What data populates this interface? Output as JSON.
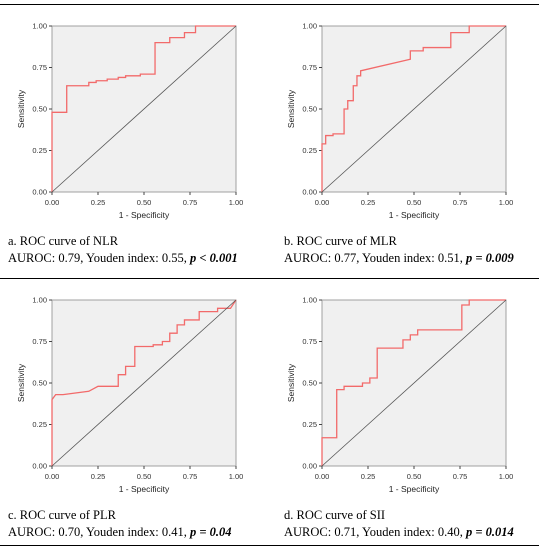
{
  "chart_data": [
    {
      "type": "line",
      "xlabel": "1 - Specificity",
      "ylabel": "Sensitivity",
      "xlim": [
        0,
        1
      ],
      "ylim": [
        0,
        1
      ],
      "xticks": [
        "0.00",
        "0.25",
        "0.50",
        "0.75",
        "1.00"
      ],
      "yticks": [
        "0.00",
        "0.25",
        "0.50",
        "0.75",
        "1.00"
      ],
      "caption_title": "a. ROC curve of NLR",
      "caption_stats": "AUROC: 0.79, Youden index: 0.55,",
      "caption_p": "p < 0.001",
      "series": [
        {
          "x": [
            0,
            0,
            0.02,
            0.02,
            0.08,
            0.08,
            0.2,
            0.2,
            0.24,
            0.24,
            0.3,
            0.3,
            0.36,
            0.36,
            0.4,
            0.4,
            0.48,
            0.48,
            0.56,
            0.56,
            0.64,
            0.64,
            0.72,
            0.72,
            0.78,
            0.78,
            1.0
          ],
          "y": [
            0,
            0.48,
            0.48,
            0.48,
            0.48,
            0.64,
            0.64,
            0.66,
            0.66,
            0.67,
            0.67,
            0.68,
            0.68,
            0.69,
            0.69,
            0.7,
            0.7,
            0.71,
            0.71,
            0.9,
            0.9,
            0.93,
            0.93,
            0.96,
            0.96,
            1.0,
            1.0
          ]
        },
        {
          "x": [
            0,
            1
          ],
          "y": [
            0,
            1
          ]
        }
      ]
    },
    {
      "type": "line",
      "xlabel": "1 - Specificity",
      "ylabel": "Sensitivity",
      "xlim": [
        0,
        1
      ],
      "ylim": [
        0,
        1
      ],
      "xticks": [
        "0.00",
        "0.25",
        "0.50",
        "0.75",
        "1.00"
      ],
      "yticks": [
        "0.00",
        "0.25",
        "0.50",
        "0.75",
        "1.00"
      ],
      "caption_title": "b. ROC curve of MLR",
      "caption_stats": "AUROC: 0.77, Youden index: 0.51,",
      "caption_p": "p = 0.009",
      "series": [
        {
          "x": [
            0,
            0,
            0.02,
            0.02,
            0.06,
            0.06,
            0.12,
            0.12,
            0.14,
            0.14,
            0.17,
            0.17,
            0.19,
            0.19,
            0.21,
            0.21,
            0.48,
            0.48,
            0.55,
            0.55,
            0.7,
            0.7,
            0.8,
            0.8,
            1.0
          ],
          "y": [
            0,
            0.29,
            0.29,
            0.34,
            0.34,
            0.35,
            0.35,
            0.5,
            0.5,
            0.55,
            0.55,
            0.64,
            0.64,
            0.7,
            0.7,
            0.73,
            0.8,
            0.85,
            0.85,
            0.87,
            0.87,
            0.96,
            0.96,
            1.0,
            1.0
          ]
        },
        {
          "x": [
            0,
            1
          ],
          "y": [
            0,
            1
          ]
        }
      ]
    },
    {
      "type": "line",
      "xlabel": "1 - Specificity",
      "ylabel": "Sensitivity",
      "xlim": [
        0,
        1
      ],
      "ylim": [
        0,
        1
      ],
      "xticks": [
        "0.00",
        "0.25",
        "0.50",
        "0.75",
        "1.00"
      ],
      "yticks": [
        "0.00",
        "0.25",
        "0.50",
        "0.75",
        "1.00"
      ],
      "caption_title": "c. ROC curve of PLR",
      "caption_stats": "AUROC: 0.70, Youden index: 0.41,",
      "caption_p": "p = 0.04",
      "series": [
        {
          "x": [
            0,
            0,
            0.02,
            0.06,
            0.2,
            0.25,
            0.36,
            0.36,
            0.4,
            0.4,
            0.45,
            0.45,
            0.55,
            0.55,
            0.6,
            0.6,
            0.64,
            0.64,
            0.68,
            0.68,
            0.72,
            0.72,
            0.8,
            0.8,
            0.9,
            0.9,
            0.97,
            1.0
          ],
          "y": [
            0,
            0.4,
            0.43,
            0.43,
            0.45,
            0.48,
            0.48,
            0.55,
            0.55,
            0.6,
            0.6,
            0.72,
            0.72,
            0.73,
            0.73,
            0.75,
            0.75,
            0.8,
            0.8,
            0.85,
            0.85,
            0.88,
            0.88,
            0.93,
            0.93,
            0.95,
            0.95,
            1.0
          ]
        },
        {
          "x": [
            0,
            1
          ],
          "y": [
            0,
            1
          ]
        }
      ]
    },
    {
      "type": "line",
      "xlabel": "1 - Specificity",
      "ylabel": "Sensitivity",
      "xlim": [
        0,
        1
      ],
      "ylim": [
        0,
        1
      ],
      "xticks": [
        "0.00",
        "0.25",
        "0.50",
        "0.75",
        "1.00"
      ],
      "yticks": [
        "0.00",
        "0.25",
        "0.50",
        "0.75",
        "1.00"
      ],
      "caption_title": "d. ROC curve of SII",
      "caption_stats": "AUROC: 0.71, Youden index: 0.40,",
      "caption_p": "p = 0.014",
      "series": [
        {
          "x": [
            0,
            0,
            0.08,
            0.08,
            0.12,
            0.12,
            0.22,
            0.22,
            0.26,
            0.26,
            0.3,
            0.3,
            0.44,
            0.44,
            0.48,
            0.48,
            0.52,
            0.52,
            0.76,
            0.76,
            0.8,
            0.8,
            1.0
          ],
          "y": [
            0,
            0.17,
            0.17,
            0.46,
            0.46,
            0.48,
            0.48,
            0.5,
            0.5,
            0.53,
            0.53,
            0.71,
            0.71,
            0.76,
            0.76,
            0.79,
            0.79,
            0.82,
            0.82,
            0.97,
            0.97,
            1.0,
            1.0
          ]
        },
        {
          "x": [
            0,
            1
          ],
          "y": [
            0,
            1
          ]
        }
      ]
    }
  ],
  "style": {
    "roc_color": "#f26a6a",
    "reference_color": "#555555",
    "plot_background": "#f0f0f0",
    "frame_color": "#a0a0a0"
  }
}
